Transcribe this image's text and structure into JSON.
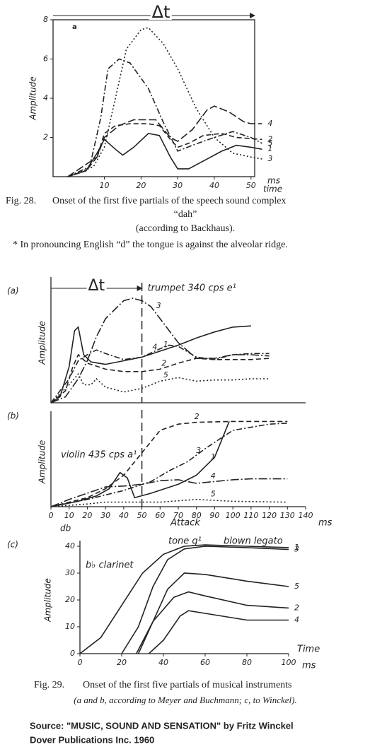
{
  "chart_data": [
    {
      "type": "line",
      "panel_label": "a",
      "ylabel": "Amplitude",
      "xlabel": "time",
      "x_unit": "ms",
      "annotation": "Δt",
      "xlim": [
        -4,
        51
      ],
      "ylim": [
        0,
        8
      ],
      "xticks": [
        10,
        20,
        30,
        40,
        50
      ],
      "yticks": [
        2,
        4,
        6,
        8
      ],
      "series": [
        {
          "name": "1",
          "color": "#222222",
          "dash": "solid",
          "x": [
            0,
            5,
            8,
            10,
            13,
            15,
            18,
            22,
            25,
            28,
            30,
            33,
            37,
            42,
            46,
            50,
            53
          ],
          "values": [
            0,
            0.3,
            1.2,
            1.9,
            1.4,
            1.1,
            1.5,
            2.2,
            2.1,
            1.0,
            0.4,
            0.4,
            0.8,
            1.3,
            1.6,
            1.5,
            1.4
          ]
        },
        {
          "name": "2",
          "color": "#222222",
          "dash": "dashed",
          "x": [
            0,
            5,
            8,
            10,
            13,
            17,
            22,
            25,
            28,
            30,
            33,
            37,
            42,
            46,
            53
          ],
          "values": [
            0,
            0.3,
            1.0,
            2.2,
            2.6,
            2.7,
            2.7,
            2.6,
            1.9,
            1.5,
            1.7,
            2.1,
            2.2,
            2.0,
            1.9
          ]
        },
        {
          "name": "3",
          "color": "#222222",
          "dash": "dotted",
          "x": [
            0,
            7,
            10,
            13,
            16,
            20,
            22,
            26,
            30,
            35,
            40,
            45,
            50,
            53
          ],
          "values": [
            0,
            0.5,
            1.5,
            4,
            6.5,
            7.5,
            7.6,
            6.8,
            5.5,
            3.5,
            2.0,
            1.2,
            1.0,
            0.9
          ]
        },
        {
          "name": "4",
          "color": "#222222",
          "dash": "longdash",
          "x": [
            0,
            8,
            10,
            14,
            18,
            24,
            28,
            30,
            34,
            38,
            40,
            44,
            48,
            50,
            53
          ],
          "values": [
            0,
            1,
            2,
            2.6,
            2.9,
            2.9,
            2.0,
            1.8,
            2.4,
            3.4,
            3.6,
            3.3,
            2.8,
            2.7,
            2.7
          ]
        },
        {
          "name": "5",
          "color": "#222222",
          "dash": "dashdot",
          "x": [
            0,
            6,
            9,
            11,
            14,
            17,
            22,
            26,
            30,
            34,
            40,
            45,
            50,
            53
          ],
          "values": [
            0,
            0.5,
            3,
            5.5,
            6.0,
            5.8,
            4.5,
            2.8,
            1.3,
            1.6,
            2.0,
            2.3,
            2.0,
            1.7
          ]
        }
      ]
    },
    {
      "type": "line",
      "panel_label": "(a)",
      "ylabel": "Amplitude",
      "annotation": "Δt",
      "instrument": "trumpet 340 cps e¹",
      "vline": 50,
      "xlim": [
        0,
        140
      ],
      "ylim": [
        0,
        10
      ],
      "series": [
        {
          "name": "1",
          "color": "#222222",
          "dash": "solid",
          "x": [
            0,
            5,
            10,
            13,
            15,
            18,
            22,
            30,
            40,
            50,
            60,
            70,
            80,
            90,
            100,
            110
          ],
          "values": [
            0,
            0.5,
            3,
            6,
            6.3,
            4,
            3.4,
            3.2,
            3.5,
            3.8,
            4.3,
            4.8,
            5.4,
            5.9,
            6.3,
            6.4
          ]
        },
        {
          "name": "2",
          "color": "#222222",
          "dash": "dashed",
          "x": [
            0,
            8,
            12,
            15,
            20,
            30,
            40,
            50,
            60,
            70,
            80,
            90,
            100,
            110,
            120
          ],
          "values": [
            0,
            1,
            3,
            4,
            3.3,
            2.8,
            2.6,
            2.6,
            2.8,
            3.3,
            3.7,
            3.6,
            3.6,
            3.6,
            3.7
          ]
        },
        {
          "name": "3",
          "color": "#222222",
          "dash": "longdashdot",
          "x": [
            0,
            8,
            15,
            20,
            25,
            30,
            40,
            45,
            50,
            55,
            60,
            70,
            80,
            90,
            100,
            110,
            120
          ],
          "values": [
            0,
            0.5,
            2,
            3.5,
            5.5,
            7,
            8.5,
            8.7,
            8.5,
            8,
            7,
            5,
            3.7,
            3.7,
            4,
            4,
            3.9
          ]
        },
        {
          "name": "4",
          "color": "#222222",
          "dash": "dashdot",
          "x": [
            0,
            10,
            15,
            20,
            25,
            30,
            40,
            50,
            60,
            65,
            70,
            80,
            90,
            100,
            110,
            120
          ],
          "values": [
            0,
            2,
            3.5,
            4,
            4.4,
            4.1,
            3.6,
            3.8,
            4.5,
            4.8,
            4.7,
            3.8,
            3.6,
            4.0,
            4.1,
            4.1
          ]
        },
        {
          "name": "5",
          "color": "#222222",
          "dash": "dotted",
          "x": [
            0,
            10,
            15,
            18,
            22,
            25,
            30,
            40,
            50,
            60,
            70,
            80,
            90,
            100,
            110,
            120
          ],
          "values": [
            0,
            1.5,
            2.4,
            1.5,
            1.5,
            2,
            1.3,
            0.9,
            1.2,
            1.8,
            2.1,
            1.8,
            1.9,
            1.9,
            2,
            2
          ]
        }
      ]
    },
    {
      "type": "line",
      "panel_label": "(b)",
      "ylabel": "Amplitude",
      "xlabel": "Attack",
      "x_unit": "ms",
      "instrument": "violin 435 cps a¹",
      "vline": 50,
      "xlim": [
        0,
        140
      ],
      "ylim": [
        0,
        10
      ],
      "xticks": [
        0,
        10,
        20,
        30,
        40,
        50,
        60,
        70,
        80,
        90,
        100,
        110,
        120,
        130,
        140
      ],
      "series": [
        {
          "name": "1",
          "color": "#222222",
          "dash": "solid",
          "x": [
            0,
            15,
            25,
            32,
            38,
            42,
            46,
            55,
            70,
            80,
            90,
            98
          ],
          "values": [
            0,
            0.6,
            1.2,
            2,
            3.8,
            3.2,
            1,
            1.5,
            2.5,
            3.5,
            5.5,
            9.5
          ]
        },
        {
          "name": "2",
          "color": "#222222",
          "dash": "dashed",
          "x": [
            0,
            20,
            30,
            40,
            50,
            60,
            70,
            80,
            100,
            120,
            130
          ],
          "values": [
            0,
            1,
            2,
            3.5,
            6,
            8.5,
            9.2,
            9.4,
            9.5,
            9.5,
            9.5
          ]
        },
        {
          "name": "3",
          "color": "#222222",
          "dash": "dashdot",
          "x": [
            0,
            20,
            40,
            55,
            65,
            75,
            85,
            100,
            120,
            130
          ],
          "values": [
            0,
            0.8,
            1.8,
            2.8,
            4,
            5,
            6.5,
            8.5,
            9.2,
            9.3
          ]
        },
        {
          "name": "4",
          "color": "#222222",
          "dash": "longdashdot",
          "x": [
            0,
            10,
            20,
            30,
            40,
            50,
            60,
            70,
            80,
            90,
            100,
            110,
            130
          ],
          "values": [
            0,
            0.8,
            1.5,
            2.2,
            2.3,
            2.5,
            2.9,
            3,
            2.6,
            2.8,
            3.0,
            3.1,
            3.1
          ]
        },
        {
          "name": "5",
          "color": "#222222",
          "dash": "dotted",
          "x": [
            0,
            20,
            30,
            40,
            60,
            80,
            100,
            130
          ],
          "values": [
            0,
            0.3,
            0.5,
            0.5,
            0.5,
            0.8,
            0.6,
            0.5
          ]
        }
      ]
    },
    {
      "type": "line",
      "panel_label": "(c)",
      "ylabel": "Amplitude",
      "y_unit": "db",
      "xlabel": "Time",
      "x_unit": "ms",
      "notes": [
        "b♭ clarinet",
        "tone g¹",
        "blown legato"
      ],
      "xlim": [
        0,
        100
      ],
      "ylim": [
        0,
        40
      ],
      "xticks": [
        0,
        20,
        40,
        60,
        80,
        100
      ],
      "yticks": [
        0,
        10,
        20,
        30,
        40
      ],
      "series": [
        {
          "name": "1",
          "color": "#222222",
          "dash": "solid",
          "x": [
            0,
            10,
            20,
            30,
            40,
            50,
            60,
            80,
            100
          ],
          "values": [
            0,
            6,
            18,
            30,
            37,
            40,
            40.5,
            40,
            39.5
          ]
        },
        {
          "name": "3",
          "color": "#222222",
          "dash": "solid",
          "x": [
            20,
            28,
            35,
            42,
            50,
            60,
            80,
            100
          ],
          "values": [
            0,
            10,
            25,
            35,
            39,
            40,
            39.5,
            38.8
          ]
        },
        {
          "name": "5",
          "color": "#222222",
          "dash": "solid",
          "x": [
            27,
            35,
            42,
            50,
            60,
            80,
            100
          ],
          "values": [
            0,
            12,
            24,
            30,
            29.5,
            27,
            25
          ]
        },
        {
          "name": "2",
          "color": "#222222",
          "dash": "solid",
          "x": [
            28,
            35,
            45,
            52,
            60,
            80,
            100
          ],
          "values": [
            0,
            12,
            21,
            23,
            21.5,
            18,
            17
          ]
        },
        {
          "name": "4",
          "color": "#222222",
          "dash": "solid",
          "x": [
            33,
            40,
            48,
            52,
            60,
            80,
            100
          ],
          "values": [
            0,
            5,
            14,
            16,
            15,
            12.5,
            12.5
          ]
        }
      ]
    }
  ],
  "fig28_caption": [
    "Fig. 28.",
    "Onset of the first five partials of the speech sound complex",
    "“dah”",
    "(according to Backhaus).",
    "* In pronouncing English “d” the tongue is against the alveolar ridge."
  ],
  "fig29_caption": [
    "Fig. 29.",
    "Onset of the first five partials of musical instruments",
    "(a and b, according to Meyer and Buchmann; c, to Winckel)."
  ],
  "source": [
    "Source: \"MUSIC, SOUND AND SENSATION\" by Fritz Winckel",
    "Dover Publications Inc. 1960"
  ]
}
